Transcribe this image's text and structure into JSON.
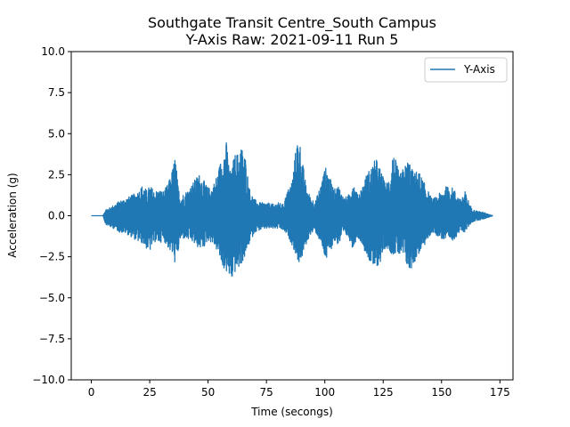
{
  "chart_data": {
    "type": "line",
    "title": "Southgate Transit Centre_South Campus",
    "subtitle": "Y-Axis Raw: 2021-09-11 Run 5",
    "xlabel": "Time (secongs)",
    "ylabel": "Acceleration (g)",
    "xlim": [
      -8.6,
      180.6
    ],
    "ylim": [
      -10,
      10
    ],
    "xticks": [
      0,
      25,
      50,
      75,
      100,
      125,
      150,
      175
    ],
    "yticks": [
      -10,
      -7.5,
      -5,
      -2.5,
      0,
      2.5,
      5,
      7.5,
      10
    ],
    "xtick_labels": [
      "0",
      "25",
      "50",
      "75",
      "100",
      "125",
      "150",
      "175"
    ],
    "ytick_labels": [
      "−10.0",
      "−7.5",
      "−5.0",
      "−2.5",
      "0.0",
      "2.5",
      "5.0",
      "7.5",
      "10.0"
    ],
    "grid": false,
    "legend_position": "top-right",
    "series": [
      {
        "name": "Y-Axis",
        "color": "#1f77b4",
        "x_range": [
          0,
          172
        ],
        "envelope": {
          "t": [
            0,
            5,
            6,
            8,
            10,
            12,
            15,
            18,
            20,
            22,
            24,
            25,
            27,
            29,
            31,
            33,
            35,
            36,
            37,
            38,
            40,
            43,
            46,
            48,
            50,
            52,
            54,
            56,
            58,
            59,
            60,
            61,
            62,
            63,
            64,
            65,
            66,
            67,
            68,
            70,
            72,
            75,
            78,
            80,
            82,
            84,
            86,
            88,
            89,
            90,
            92,
            94,
            96,
            98,
            100,
            101,
            102,
            104,
            106,
            108,
            110,
            112,
            114,
            116,
            118,
            120,
            121,
            122,
            124,
            126,
            128,
            129,
            130,
            132,
            134,
            136,
            138,
            140,
            142,
            144,
            146,
            148,
            150,
            152,
            155,
            158,
            160,
            163,
            165,
            168,
            170,
            172
          ],
          "upper": [
            0,
            0,
            0.4,
            0.5,
            0.7,
            0.9,
            1.1,
            1.3,
            1.5,
            1.9,
            1.5,
            1.9,
            1.5,
            1.6,
            1.5,
            2.0,
            3.0,
            3.8,
            2.0,
            1.2,
            1.4,
            1.9,
            2.6,
            2.2,
            1.7,
            1.8,
            2.6,
            3.7,
            4.6,
            3.0,
            2.5,
            3.6,
            3.9,
            3.8,
            4.4,
            4.0,
            3.6,
            2.5,
            1.5,
            1.0,
            0.8,
            0.8,
            0.7,
            0.8,
            0.7,
            1.5,
            2.2,
            4.6,
            4.9,
            3.8,
            1.8,
            1.1,
            0.9,
            1.8,
            2.9,
            3.0,
            2.4,
            1.6,
            1.9,
            1.1,
            1.2,
            2.2,
            1.3,
            1.8,
            2.6,
            3.0,
            3.3,
            3.5,
            2.8,
            1.9,
            2.5,
            3.8,
            3.6,
            2.5,
            3.0,
            3.5,
            2.6,
            2.8,
            2.2,
            1.6,
            1.0,
            1.2,
            1.5,
            1.8,
            1.7,
            1.0,
            1.5,
            0.4,
            0.3,
            0.2,
            0.1,
            0
          ],
          "lower": [
            0,
            0,
            -0.5,
            -0.7,
            -0.8,
            -1.0,
            -1.1,
            -1.4,
            -1.6,
            -1.7,
            -2.1,
            -2.2,
            -1.6,
            -1.7,
            -1.5,
            -2.0,
            -2.5,
            -3.0,
            -2.5,
            -1.5,
            -1.4,
            -1.6,
            -2.0,
            -2.0,
            -1.5,
            -1.7,
            -2.2,
            -3.1,
            -3.5,
            -3.8,
            -4.1,
            -3.6,
            -3.4,
            -3.3,
            -3.0,
            -2.8,
            -2.5,
            -2.0,
            -1.6,
            -1.0,
            -0.9,
            -0.8,
            -0.8,
            -0.8,
            -0.9,
            -1.2,
            -1.8,
            -2.6,
            -2.9,
            -2.7,
            -1.8,
            -1.1,
            -1.0,
            -1.6,
            -2.6,
            -2.8,
            -2.3,
            -1.6,
            -1.8,
            -1.2,
            -1.3,
            -2.0,
            -1.3,
            -1.7,
            -2.5,
            -3.0,
            -3.4,
            -3.2,
            -2.8,
            -1.9,
            -2.2,
            -2.4,
            -2.3,
            -2.5,
            -2.6,
            -3.5,
            -3.0,
            -2.4,
            -2.0,
            -1.5,
            -1.0,
            -1.2,
            -1.4,
            -1.6,
            -1.5,
            -1.0,
            -1.0,
            -0.4,
            -0.3,
            -0.2,
            -0.1,
            0
          ]
        }
      }
    ]
  }
}
